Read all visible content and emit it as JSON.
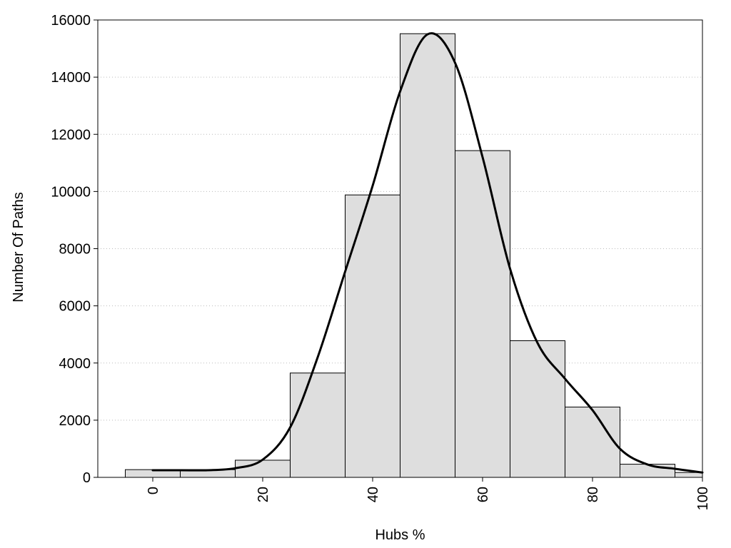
{
  "chart_data": {
    "type": "bar",
    "subtype": "histogram-with-density-curve",
    "title": "",
    "xlabel": "Hubs %",
    "ylabel": "Number Of Paths",
    "xlim": [
      -10,
      100
    ],
    "ylim": [
      0,
      16000
    ],
    "xticks": [
      0,
      20,
      40,
      60,
      80,
      100
    ],
    "yticks": [
      0,
      2000,
      4000,
      6000,
      8000,
      10000,
      12000,
      14000,
      16000
    ],
    "xtick_rotation": -90,
    "grid": "horizontal-dotted",
    "legend": "none",
    "colors": {
      "bar_fill": "#dedede",
      "bar_edge": "#000000",
      "curve": "#000000",
      "grid": "#bbbbbb"
    },
    "bins": [
      {
        "x0": -5,
        "x1": 5,
        "value": 270
      },
      {
        "x0": 5,
        "x1": 15,
        "value": 270
      },
      {
        "x0": 15,
        "x1": 25,
        "value": 600
      },
      {
        "x0": 25,
        "x1": 35,
        "value": 3650
      },
      {
        "x0": 35,
        "x1": 45,
        "value": 9880
      },
      {
        "x0": 45,
        "x1": 55,
        "value": 15520
      },
      {
        "x0": 55,
        "x1": 65,
        "value": 11430
      },
      {
        "x0": 65,
        "x1": 75,
        "value": 4780
      },
      {
        "x0": 75,
        "x1": 85,
        "value": 2460
      },
      {
        "x0": 85,
        "x1": 95,
        "value": 460
      },
      {
        "x0": 95,
        "x1": 100,
        "value": 170
      }
    ],
    "curve": {
      "x": [
        0,
        5,
        10,
        15,
        20,
        25,
        30,
        35,
        40,
        45,
        50,
        55,
        60,
        65,
        70,
        75,
        80,
        85,
        90,
        95,
        100
      ],
      "y": [
        250,
        250,
        250,
        320,
        620,
        1750,
        4200,
        7200,
        10200,
        13500,
        15500,
        14500,
        11200,
        7300,
        4700,
        3450,
        2350,
        1000,
        450,
        300,
        170
      ]
    }
  }
}
